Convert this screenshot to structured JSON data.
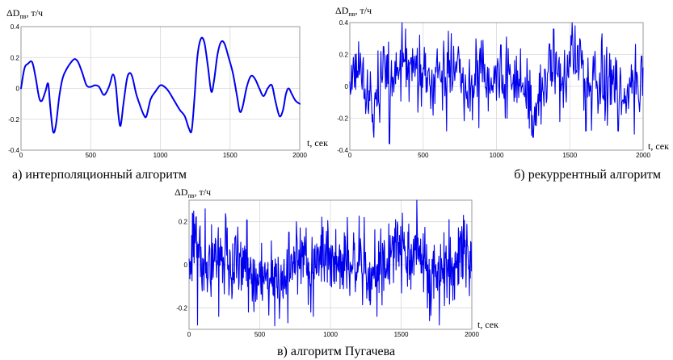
{
  "chart_data": [
    {
      "type": "line",
      "caption": "а) интерполяционный алгоритм",
      "ylabel": "ΔD",
      "ylabel_sub": "пв",
      "ylabel_unit": ", т/ч",
      "xlabel": "t, сек",
      "xlim": [
        0,
        2000
      ],
      "ylim": [
        -0.4,
        0.4
      ],
      "xticks": [
        0,
        500,
        1000,
        1500,
        2000
      ],
      "yticks": [
        0.4,
        0.2,
        0,
        -0.2,
        -0.4
      ],
      "xtick_labels": [
        "0",
        "500",
        "1000",
        "1500",
        "2000"
      ],
      "ytick_labels": [
        "0.4",
        "0.2",
        "0",
        "-0.2",
        "-0.4"
      ],
      "color": "#0000ee",
      "series": [
        {
          "style": "smooth",
          "points": [
            [
              0,
              0.0
            ],
            [
              25,
              0.13
            ],
            [
              50,
              0.16
            ],
            [
              80,
              0.17
            ],
            [
              105,
              0.07
            ],
            [
              130,
              -0.06
            ],
            [
              150,
              -0.08
            ],
            [
              175,
              -0.02
            ],
            [
              195,
              0.03
            ],
            [
              210,
              -0.12
            ],
            [
              230,
              -0.28
            ],
            [
              250,
              -0.24
            ],
            [
              275,
              -0.05
            ],
            [
              300,
              0.07
            ],
            [
              330,
              0.13
            ],
            [
              360,
              0.17
            ],
            [
              385,
              0.19
            ],
            [
              410,
              0.17
            ],
            [
              440,
              0.1
            ],
            [
              470,
              0.02
            ],
            [
              500,
              0.01
            ],
            [
              530,
              0.02
            ],
            [
              560,
              0.01
            ],
            [
              590,
              -0.04
            ],
            [
              610,
              -0.03
            ],
            [
              635,
              0.02
            ],
            [
              660,
              0.09
            ],
            [
              680,
              0.02
            ],
            [
              700,
              -0.18
            ],
            [
              715,
              -0.24
            ],
            [
              735,
              -0.1
            ],
            [
              760,
              0.06
            ],
            [
              780,
              0.1
            ],
            [
              800,
              0.07
            ],
            [
              825,
              -0.03
            ],
            [
              850,
              -0.1
            ],
            [
              880,
              -0.17
            ],
            [
              900,
              -0.18
            ],
            [
              930,
              -0.07
            ],
            [
              965,
              -0.02
            ],
            [
              1000,
              0.02
            ],
            [
              1030,
              0.01
            ],
            [
              1060,
              -0.02
            ],
            [
              1100,
              -0.08
            ],
            [
              1140,
              -0.14
            ],
            [
              1175,
              -0.18
            ],
            [
              1205,
              -0.26
            ],
            [
              1225,
              -0.27
            ],
            [
              1245,
              -0.06
            ],
            [
              1265,
              0.2
            ],
            [
              1290,
              0.32
            ],
            [
              1315,
              0.3
            ],
            [
              1340,
              0.15
            ],
            [
              1365,
              -0.02
            ],
            [
              1385,
              0.05
            ],
            [
              1410,
              0.22
            ],
            [
              1435,
              0.3
            ],
            [
              1460,
              0.29
            ],
            [
              1490,
              0.2
            ],
            [
              1520,
              0.1
            ],
            [
              1550,
              -0.05
            ],
            [
              1570,
              -0.15
            ],
            [
              1590,
              -0.12
            ],
            [
              1620,
              0.01
            ],
            [
              1650,
              0.08
            ],
            [
              1680,
              0.06
            ],
            [
              1710,
              0.0
            ],
            [
              1740,
              -0.05
            ],
            [
              1770,
              0.0
            ],
            [
              1800,
              0.02
            ],
            [
              1825,
              -0.08
            ],
            [
              1855,
              -0.18
            ],
            [
              1880,
              -0.14
            ],
            [
              1900,
              -0.04
            ],
            [
              1920,
              0.0
            ],
            [
              1945,
              -0.04
            ],
            [
              1970,
              -0.08
            ],
            [
              2000,
              -0.1
            ]
          ]
        }
      ]
    },
    {
      "type": "line",
      "caption": "б) рекуррентный алгоритм",
      "ylabel": "ΔD",
      "ylabel_sub": "пв",
      "ylabel_unit": ", т/ч",
      "xlabel": "t, сек",
      "xlim": [
        0,
        2000
      ],
      "ylim": [
        -0.4,
        0.4
      ],
      "xticks": [
        0,
        500,
        1000,
        1500,
        2000
      ],
      "yticks": [
        0.4,
        0.2,
        0,
        -0.2,
        -0.4
      ],
      "xtick_labels": [
        "0",
        "500",
        "1000",
        "1500",
        "2000"
      ],
      "ytick_labels": [
        "0.4",
        "0.2",
        "0",
        "-0.2",
        "-0.4"
      ],
      "color": "#0000ee",
      "series": [
        {
          "style": "noisy",
          "sample_step": 4,
          "amplitude": 0.4,
          "anchors": [
            [
              0,
              0.05
            ],
            [
              60,
              0.15
            ],
            [
              110,
              -0.05
            ],
            [
              160,
              -0.1
            ],
            [
              210,
              0.05
            ],
            [
              260,
              0.15
            ],
            [
              310,
              0.05
            ],
            [
              360,
              0.2
            ],
            [
              400,
              0.05
            ],
            [
              450,
              0.05
            ],
            [
              500,
              0.1
            ],
            [
              560,
              -0.05
            ],
            [
              600,
              0.05
            ],
            [
              640,
              0.05
            ],
            [
              700,
              0.1
            ],
            [
              760,
              0.05
            ],
            [
              800,
              -0.05
            ],
            [
              860,
              0.05
            ],
            [
              900,
              0.1
            ],
            [
              960,
              0.0
            ],
            [
              1000,
              0.1
            ],
            [
              1060,
              0.05
            ],
            [
              1120,
              0.1
            ],
            [
              1180,
              0.0
            ],
            [
              1230,
              -0.1
            ],
            [
              1270,
              -0.15
            ],
            [
              1320,
              0.05
            ],
            [
              1380,
              0.15
            ],
            [
              1420,
              0.1
            ],
            [
              1470,
              0.0
            ],
            [
              1520,
              0.2
            ],
            [
              1570,
              0.15
            ],
            [
              1620,
              -0.05
            ],
            [
              1680,
              0.05
            ],
            [
              1740,
              0.0
            ],
            [
              1800,
              0.05
            ],
            [
              1860,
              -0.05
            ],
            [
              1920,
              0.05
            ],
            [
              1970,
              -0.05
            ],
            [
              2000,
              0.05
            ]
          ],
          "spikes": [
            [
              35,
              0.2
            ],
            [
              165,
              -0.32
            ],
            [
              230,
              0.25
            ],
            [
              270,
              -0.36
            ],
            [
              380,
              0.36
            ],
            [
              660,
              -0.28
            ],
            [
              740,
              0.25
            ],
            [
              880,
              -0.26
            ],
            [
              1030,
              0.26
            ],
            [
              1250,
              -0.32
            ],
            [
              1390,
              0.36
            ],
            [
              1515,
              0.4
            ],
            [
              1535,
              0.38
            ],
            [
              1610,
              -0.28
            ],
            [
              1720,
              0.33
            ],
            [
              1830,
              -0.28
            ],
            [
              1940,
              -0.3
            ],
            [
              1990,
              0.19
            ]
          ],
          "seed": 17
        }
      ]
    },
    {
      "type": "line",
      "caption": "в) алгоритм Пугачева",
      "ylabel": "ΔD",
      "ylabel_sub": "пв",
      "ylabel_unit": ", т/ч",
      "xlabel": "t, сек",
      "xlim": [
        0,
        2000
      ],
      "ylim": [
        -0.3,
        0.3
      ],
      "xticks": [
        0,
        500,
        1000,
        1500,
        2000
      ],
      "yticks": [
        0.2,
        0,
        -0.2
      ],
      "xtick_labels": [
        "0",
        "500",
        "1000",
        "1500",
        "2000"
      ],
      "ytick_labels": [
        "0.2",
        "0",
        "-0.2"
      ],
      "color": "#0000ee",
      "series": [
        {
          "style": "noisy",
          "sample_step": 3,
          "amplitude": 0.3,
          "anchors": [
            [
              0,
              0.0
            ],
            [
              60,
              0.1
            ],
            [
              110,
              -0.05
            ],
            [
              180,
              0.05
            ],
            [
              250,
              0.05
            ],
            [
              320,
              -0.05
            ],
            [
              400,
              0.05
            ],
            [
              450,
              -0.05
            ],
            [
              520,
              -0.05
            ],
            [
              600,
              -0.05
            ],
            [
              660,
              -0.1
            ],
            [
              720,
              0.0
            ],
            [
              800,
              0.05
            ],
            [
              860,
              -0.05
            ],
            [
              920,
              0.05
            ],
            [
              980,
              0.05
            ],
            [
              1030,
              0.0
            ],
            [
              1100,
              0.05
            ],
            [
              1180,
              0.0
            ],
            [
              1250,
              0.05
            ],
            [
              1320,
              -0.05
            ],
            [
              1400,
              0.05
            ],
            [
              1470,
              0.05
            ],
            [
              1540,
              0.0
            ],
            [
              1600,
              0.05
            ],
            [
              1660,
              0.05
            ],
            [
              1720,
              -0.05
            ],
            [
              1800,
              0.0
            ],
            [
              1870,
              -0.05
            ],
            [
              1940,
              0.05
            ],
            [
              2000,
              0.0
            ]
          ],
          "spikes": [
            [
              25,
              0.24
            ],
            [
              60,
              -0.28
            ],
            [
              115,
              0.26
            ],
            [
              210,
              -0.24
            ],
            [
              260,
              0.22
            ],
            [
              420,
              -0.22
            ],
            [
              640,
              -0.25
            ],
            [
              700,
              -0.27
            ],
            [
              760,
              0.2
            ],
            [
              880,
              -0.24
            ],
            [
              1120,
              0.22
            ],
            [
              1240,
              0.22
            ],
            [
              1330,
              -0.24
            ],
            [
              1460,
              0.21
            ],
            [
              1510,
              0.24
            ],
            [
              1610,
              0.31
            ],
            [
              1700,
              -0.26
            ],
            [
              1770,
              -0.28
            ],
            [
              1840,
              0.21
            ],
            [
              1940,
              0.23
            ]
          ],
          "seed": 91
        }
      ]
    }
  ]
}
